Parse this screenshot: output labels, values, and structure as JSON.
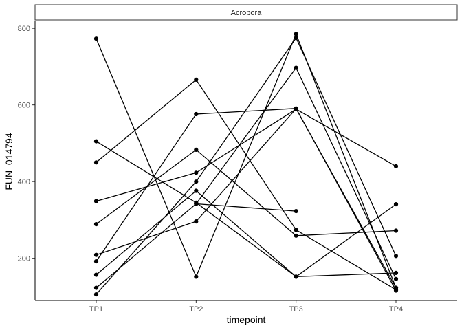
{
  "chart_data": {
    "type": "line",
    "facet_label": "Acropora",
    "xlabel": "timepoint",
    "ylabel": "FUN_014794",
    "categories": [
      "TP1",
      "TP2",
      "TP3",
      "TP4"
    ],
    "ylim": [
      90,
      820
    ],
    "yticks": [
      200,
      400,
      600,
      800
    ],
    "grid": false,
    "line_color": "#000000",
    "point_color": "#000000",
    "series": [
      {
        "values": [
          773,
          152,
          785,
          123
        ]
      },
      {
        "values": [
          505,
          345,
          152,
          162
        ]
      },
      {
        "values": [
          450,
          666,
          274,
          118
        ]
      },
      {
        "values": [
          349,
          423,
          589,
          440
        ]
      },
      {
        "values": [
          289,
          483,
          259,
          272
        ]
      },
      {
        "values": [
          209,
          296,
          590,
          123
        ]
      },
      {
        "values": [
          192,
          576,
          591,
          116
        ]
      },
      {
        "values": [
          157,
          376,
          152,
          341
        ]
      },
      {
        "values": [
          123,
          342,
          697,
          146
        ]
      },
      {
        "values": [
          106,
          400,
          775,
          206
        ]
      },
      {
        "values": [
          null,
          342,
          323,
          null
        ]
      }
    ]
  }
}
